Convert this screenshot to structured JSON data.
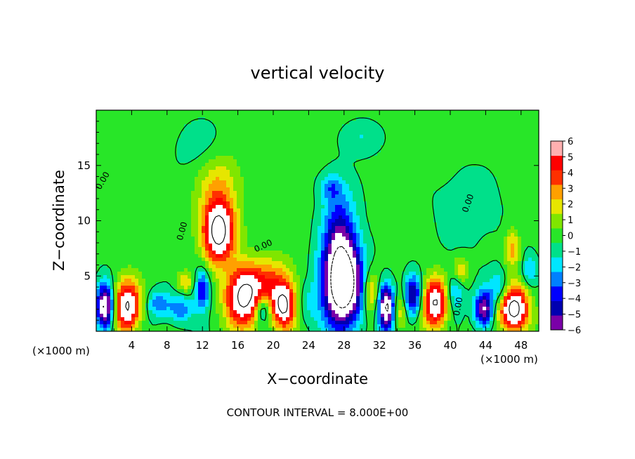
{
  "chart_data": {
    "type": "heatmap",
    "title": "vertical velocity",
    "xlabel": "X−coordinate",
    "ylabel": "Z−coordinate",
    "x_unit_left": "(×1000 m)",
    "x_unit_right": "(×1000 m)",
    "footer": "CONTOUR INTERVAL = 8.000E+00",
    "xlim": [
      0,
      50
    ],
    "ylim": [
      0,
      20
    ],
    "x_ticks": [
      4,
      8,
      12,
      16,
      20,
      24,
      28,
      32,
      36,
      40,
      44,
      48
    ],
    "y_ticks": [
      5,
      10,
      15
    ],
    "colorbar": {
      "levels": [
        -6,
        -5,
        -4,
        -3,
        -2,
        -1,
        0,
        1,
        2,
        3,
        4,
        5,
        6
      ],
      "colors": [
        "#7a00a8",
        "#0000b0",
        "#0000ff",
        "#0080ff",
        "#00e6ff",
        "#00e08a",
        "#28e628",
        "#80e600",
        "#e6e600",
        "#ffa000",
        "#ff3000",
        "#ff0000",
        "#ffb0b0"
      ]
    },
    "contour_labels": [
      "0.00",
      "0.00",
      "0.00",
      "0.00",
      "0.00"
    ],
    "features": [
      {
        "x": 1,
        "z": 2.2,
        "w": -9,
        "rx": 0.9,
        "rz": 2.0
      },
      {
        "x": 3.5,
        "z": 2.3,
        "w": 8,
        "rx": 1.4,
        "rz": 2.3
      },
      {
        "x": 7,
        "z": 2.5,
        "w": -3,
        "rx": 1.2,
        "rz": 1.2
      },
      {
        "x": 9.5,
        "z": 2.0,
        "w": -3,
        "rx": 1.4,
        "rz": 1.4
      },
      {
        "x": 10,
        "z": 4.4,
        "w": 3,
        "rx": 1.0,
        "rz": 1.0
      },
      {
        "x": 12.0,
        "z": 3.8,
        "w": -5,
        "rx": 0.8,
        "rz": 1.8
      },
      {
        "x": 13.8,
        "z": 9.0,
        "w": 9,
        "rx": 1.8,
        "rz": 2.8
      },
      {
        "x": 13.8,
        "z": 13.5,
        "w": 2.5,
        "rx": 2.5,
        "rz": 3.0
      },
      {
        "x": 16.6,
        "z": 3.0,
        "w": 8,
        "rx": 2.0,
        "rz": 2.6
      },
      {
        "x": 19.5,
        "z": 4.5,
        "w": 3.5,
        "rx": 3.0,
        "rz": 2.2
      },
      {
        "x": 18.8,
        "z": 2.0,
        "w": -4,
        "rx": 0.9,
        "rz": 1.2
      },
      {
        "x": 21.2,
        "z": 2.2,
        "w": 8,
        "rx": 1.4,
        "rz": 2.0
      },
      {
        "x": 23.5,
        "z": 2.5,
        "w": -1.5,
        "rx": 1.5,
        "rz": 2.0
      },
      {
        "x": 27.8,
        "z": 4.2,
        "w": -11,
        "rx": 2.2,
        "rz": 3.8
      },
      {
        "x": 27.5,
        "z": 9.0,
        "w": -4,
        "rx": 1.8,
        "rz": 4.0
      },
      {
        "x": 26.5,
        "z": 13.0,
        "w": -2.5,
        "rx": 1.2,
        "rz": 1.2
      },
      {
        "x": 31.0,
        "z": 3.5,
        "w": 4,
        "rx": 0.9,
        "rz": 2.0
      },
      {
        "x": 32.8,
        "z": 2.2,
        "w": -9,
        "rx": 0.9,
        "rz": 2.0
      },
      {
        "x": 34.2,
        "z": 1.8,
        "w": 3,
        "rx": 0.8,
        "rz": 1.6
      },
      {
        "x": 35.8,
        "z": 3.2,
        "w": -6,
        "rx": 0.9,
        "rz": 1.8
      },
      {
        "x": 38.3,
        "z": 2.6,
        "w": 8,
        "rx": 1.4,
        "rz": 2.2
      },
      {
        "x": 40.5,
        "z": 3.5,
        "w": -3,
        "rx": 1.0,
        "rz": 1.8
      },
      {
        "x": 41.2,
        "z": 5.5,
        "w": 3,
        "rx": 0.9,
        "rz": 1.2
      },
      {
        "x": 43.8,
        "z": 2.0,
        "w": -7,
        "rx": 1.0,
        "rz": 1.6
      },
      {
        "x": 45.5,
        "z": 4.0,
        "w": -3,
        "rx": 1.0,
        "rz": 1.5
      },
      {
        "x": 47.2,
        "z": 2.0,
        "w": 9,
        "rx": 1.6,
        "rz": 2.0
      },
      {
        "x": 47.0,
        "z": 7.5,
        "w": 3.5,
        "rx": 0.8,
        "rz": 1.8
      },
      {
        "x": 49.0,
        "z": 5.5,
        "w": -2.5,
        "rx": 0.8,
        "rz": 1.5
      },
      {
        "x": 30.0,
        "z": 17.5,
        "w": -1.4,
        "rx": 2.0,
        "rz": 1.5
      },
      {
        "x": 12.0,
        "z": 16.5,
        "w": -1.0,
        "rx": 3.0,
        "rz": 2.5
      },
      {
        "x": 42.0,
        "z": 11.0,
        "w": -0.8,
        "rx": 4.0,
        "rz": 4.0
      }
    ]
  }
}
